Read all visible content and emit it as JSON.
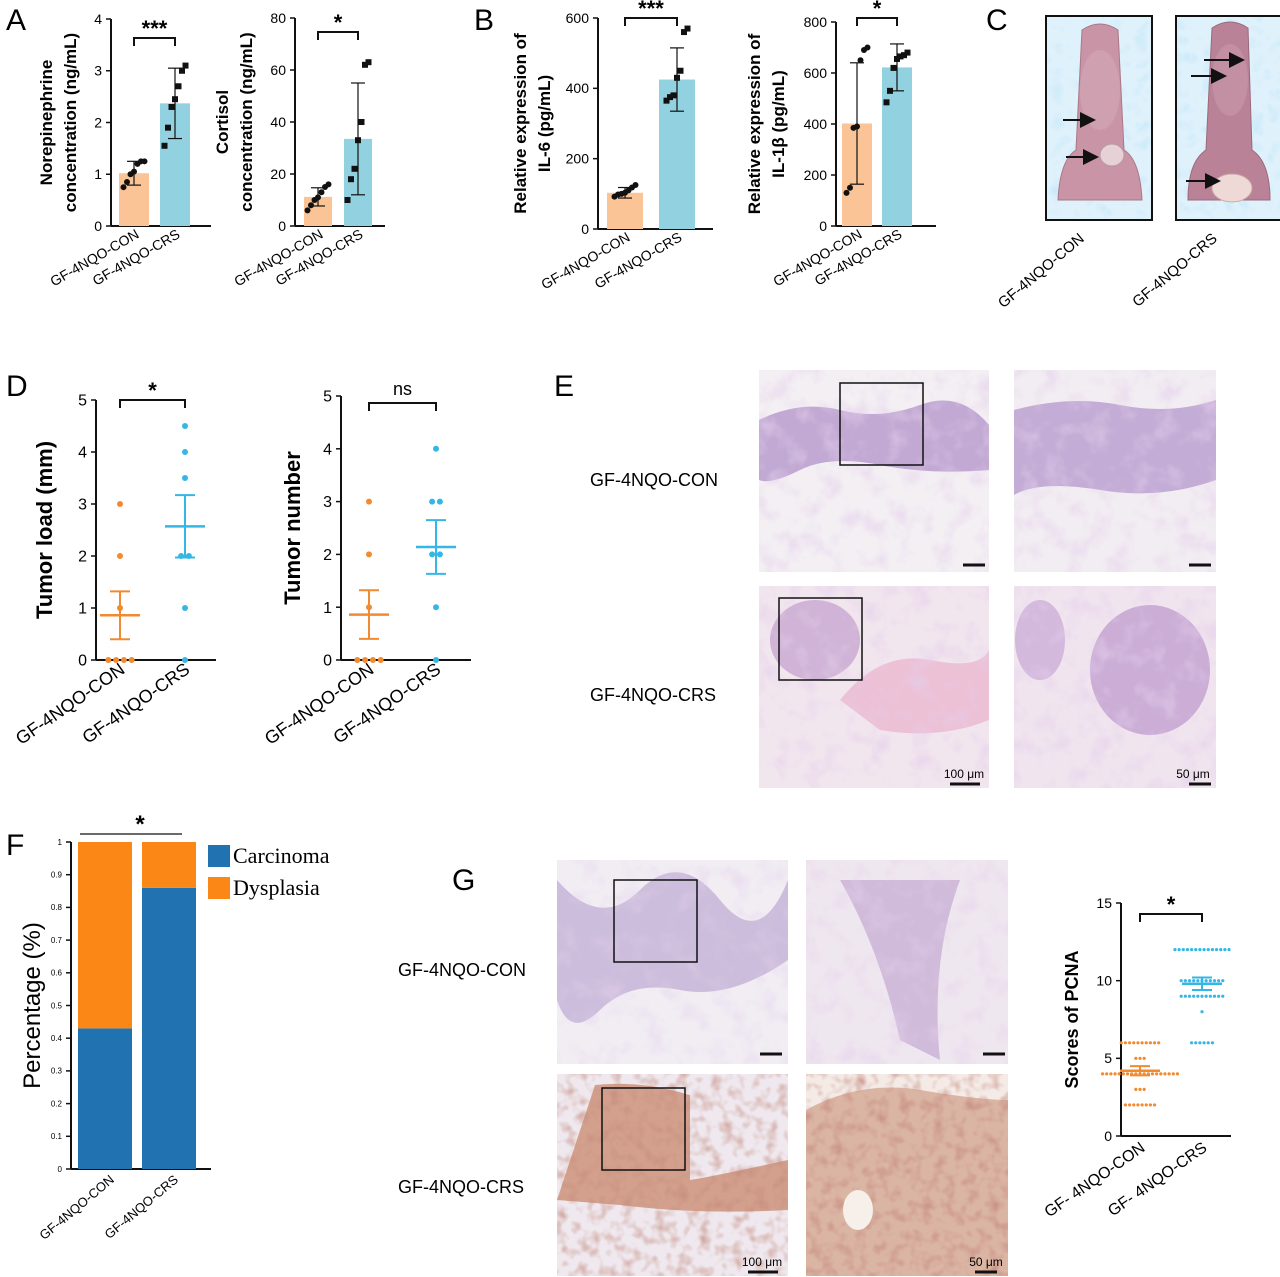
{
  "colors": {
    "orange_light": "#fbc497",
    "blue_light": "#92d2e0",
    "orange": "#f28a30",
    "blue": "#35b7e6",
    "carcinoma": "#2072b1",
    "dysplasia": "#fb8716",
    "scalebar": "#111111"
  },
  "panels": {
    "A": "A",
    "B": "B",
    "C": "C",
    "D": "D",
    "E": "E",
    "F": "F",
    "G": "G"
  },
  "groups": {
    "con": "GF-4NQO-CON",
    "crs": "GF-4NQO-CRS",
    "g_con": "GF- 4NQO-CON",
    "g_crs": "GF- 4NQO-CRS"
  },
  "histology": {
    "e_row_con": "GF-4NQO-CON",
    "e_row_crs": "GF-4NQO-CRS",
    "g_row_con": "GF-4NQO-CON",
    "g_row_crs": "GF-4NQO-CRS",
    "scale_100": "100 μm",
    "scale_50": "50 μm"
  },
  "chart_data": [
    {
      "id": "A1",
      "type": "bar",
      "ylabel_line1": "Norepinephrine",
      "ylabel_line2": "concentration (ng/mL)",
      "ylim": [
        0,
        4
      ],
      "yticks": [
        0,
        1,
        2,
        3,
        4
      ],
      "categories": [
        "GF-4NQO-CON",
        "GF-4NQO-CRS"
      ],
      "values": [
        1.02,
        2.37
      ],
      "sd": [
        0.23,
        0.68
      ],
      "points": [
        [
          0.75,
          0.85,
          1.0,
          1.05,
          1.2,
          1.25,
          1.25
        ],
        [
          1.55,
          1.9,
          2.3,
          2.45,
          2.7,
          3.0,
          3.1
        ]
      ],
      "significance": "***"
    },
    {
      "id": "A2",
      "type": "bar",
      "ylabel_line1": "Cortisol",
      "ylabel_line2": "concentration (ng/mL)",
      "ylim": [
        0,
        80
      ],
      "yticks": [
        0,
        20,
        40,
        60,
        80
      ],
      "categories": [
        "GF-4NQO-CON",
        "GF-4NQO-CRS"
      ],
      "values": [
        11.2,
        33.5
      ],
      "sd": [
        3.5,
        21.5
      ],
      "points": [
        [
          6,
          8,
          10,
          11,
          13,
          15,
          16
        ],
        [
          10,
          18,
          22,
          33,
          40,
          62,
          63
        ]
      ],
      "significance": "*"
    },
    {
      "id": "B1",
      "type": "bar",
      "ylabel_line1": "Relative expression of",
      "ylabel_line2": "IL-6 (pg/mL)",
      "ylim": [
        0,
        600
      ],
      "yticks": [
        0,
        200,
        400,
        600
      ],
      "categories": [
        "GF-4NQO-CON",
        "GF-4NQO-CRS"
      ],
      "values": [
        103,
        425
      ],
      "sd": [
        15,
        90
      ],
      "points": [
        [
          92,
          98,
          100,
          103,
          110,
          118,
          125
        ],
        [
          365,
          375,
          380,
          430,
          450,
          560,
          570
        ]
      ],
      "significance": "***"
    },
    {
      "id": "B2",
      "type": "bar",
      "ylabel_line1": "Relative expression of",
      "ylabel_line2": "IL-1β (pg/mL)",
      "ylim": [
        0,
        800
      ],
      "yticks": [
        0,
        200,
        400,
        600,
        800
      ],
      "categories": [
        "GF-4NQO-CON",
        "GF-4NQO-CRS"
      ],
      "values": [
        402,
        622
      ],
      "sd": [
        238,
        92
      ],
      "points": [
        [
          130,
          150,
          385,
          390,
          650,
          690,
          700
        ],
        [
          485,
          530,
          620,
          655,
          665,
          670,
          680
        ]
      ],
      "significance": "*"
    },
    {
      "id": "D1",
      "type": "scatter",
      "ylabel": "Tumor load (mm)",
      "ylim": [
        0,
        5
      ],
      "yticks": [
        0,
        1,
        2,
        3,
        4,
        5
      ],
      "categories": [
        "GF-4NQO-CON",
        "GF-4NQO-CRS"
      ],
      "mean": [
        0.86,
        2.57
      ],
      "sem": [
        0.46,
        0.6
      ],
      "points": [
        [
          0,
          0,
          0,
          0,
          1,
          2,
          3
        ],
        [
          0,
          1,
          2,
          2,
          3.5,
          4,
          4.5
        ]
      ],
      "significance": "*"
    },
    {
      "id": "D2",
      "type": "scatter",
      "ylabel": "Tumor number",
      "ylim": [
        0,
        5
      ],
      "yticks": [
        0,
        1,
        2,
        3,
        4,
        5
      ],
      "categories": [
        "GF-4NQO-CON",
        "GF-4NQO-CRS"
      ],
      "mean": [
        0.86,
        2.14
      ],
      "sem": [
        0.46,
        0.51
      ],
      "points": [
        [
          0,
          0,
          0,
          0,
          1,
          2,
          3
        ],
        [
          0,
          1,
          2,
          2,
          3,
          3,
          4
        ]
      ],
      "significance": "ns"
    },
    {
      "id": "F",
      "type": "bar",
      "stacked": true,
      "ylabel": "Percentage (%)",
      "ylim": [
        0,
        1
      ],
      "yticks": [
        0,
        0.1,
        0.2,
        0.3,
        0.4,
        0.5,
        0.6,
        0.7,
        0.8,
        0.9,
        1
      ],
      "categories": [
        "GF-4NQO-CON",
        "GF-4NQO-CRS"
      ],
      "series": [
        {
          "name": "Carcinoma",
          "values": [
            0.43,
            0.86
          ]
        },
        {
          "name": "Dysplasia",
          "values": [
            0.57,
            0.14
          ]
        }
      ],
      "legend": "top-right",
      "significance": "*"
    },
    {
      "id": "G",
      "type": "scatter",
      "ylabel": "Scores of PCNA",
      "ylim": [
        0,
        15
      ],
      "yticks": [
        0,
        5,
        10,
        15
      ],
      "categories": [
        "GF- 4NQO-CON",
        "GF- 4NQO-CRS"
      ],
      "mean": [
        4.2,
        9.8
      ],
      "sem": [
        0.3,
        0.4
      ],
      "points": [
        [
          2,
          2,
          2,
          2,
          2,
          2,
          2,
          2,
          3,
          3,
          3,
          4,
          4,
          4,
          4,
          4,
          4,
          4,
          4,
          4,
          4,
          4,
          4,
          4,
          4,
          4,
          4,
          4,
          4,
          4,
          5,
          5,
          5,
          6,
          6,
          6,
          6,
          6,
          6,
          6,
          6,
          6,
          6
        ],
        [
          6,
          6,
          6,
          6,
          6,
          6,
          8,
          9,
          9,
          9,
          9,
          9,
          9,
          9,
          9,
          9,
          9,
          9,
          10,
          10,
          10,
          10,
          10,
          10,
          10,
          10,
          10,
          10,
          10,
          12,
          12,
          12,
          12,
          12,
          12,
          12,
          12,
          12,
          12,
          12,
          12,
          12,
          12
        ]
      ],
      "significance": "*"
    }
  ]
}
